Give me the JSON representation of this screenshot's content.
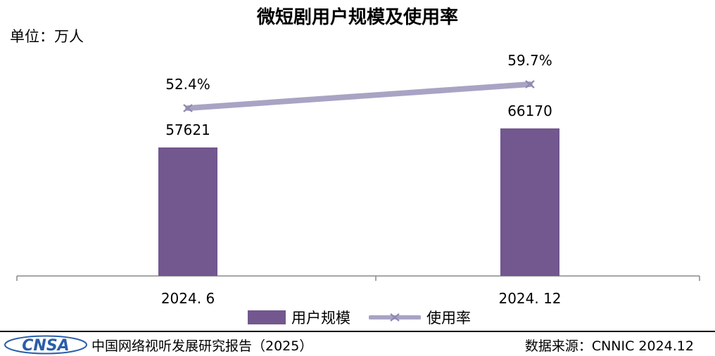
{
  "chart_data": {
    "type": "bar",
    "title": "微短剧用户规模及使用率",
    "unit_label": "单位：万人",
    "categories": [
      "2024. 6",
      "2024. 12"
    ],
    "series": [
      {
        "name": "用户规模",
        "kind": "bar",
        "values": [
          57621,
          66170
        ],
        "value_labels": [
          "57621",
          "66170"
        ],
        "color": "#73578f"
      },
      {
        "name": "使用率",
        "kind": "line",
        "values": [
          52.4,
          59.7
        ],
        "value_labels": [
          "52.4%",
          "59.7%"
        ],
        "color": "#a9a3c4"
      }
    ],
    "legend_position": "bottom",
    "grid": false
  },
  "footer": {
    "logo_text": "CNSA",
    "report_name": "中国网络视听发展研究报告（2025）",
    "source": "数据来源：CNNIC   2024.12"
  }
}
